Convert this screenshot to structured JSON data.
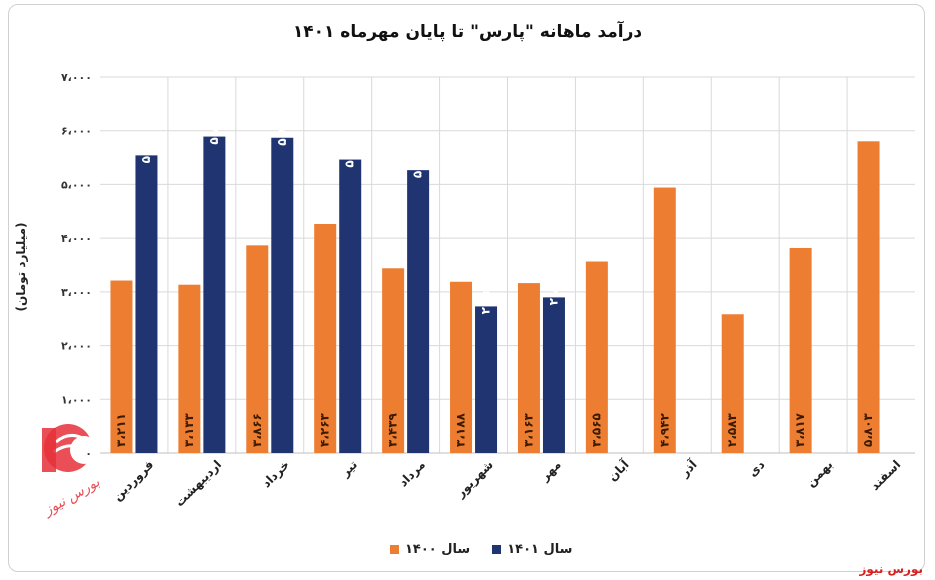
{
  "chart_data": {
    "type": "bar",
    "title": "درآمد ماهانه \"پارس\" تا پایان مهرماه ۱۴۰۱",
    "ylabel": "(میلیارد تومان)",
    "xlabel": "",
    "ylim": [
      0,
      7000
    ],
    "yticks": [
      0,
      1000,
      2000,
      3000,
      4000,
      5000,
      6000,
      7000
    ],
    "ytick_labels": [
      "۰",
      "۱،۰۰۰",
      "۲،۰۰۰",
      "۳،۰۰۰",
      "۴،۰۰۰",
      "۵،۰۰۰",
      "۶،۰۰۰",
      "۷،۰۰۰"
    ],
    "grid": true,
    "legend_position": "bottom",
    "categories": [
      "فروردین",
      "اردیبهشت",
      "خرداد",
      "تیر",
      "مرداد",
      "شهریور",
      "مهر",
      "آبان",
      "آذر",
      "دی",
      "بهمن",
      "اسفند"
    ],
    "series": [
      {
        "name": "سال ۱۴۰۰",
        "color": "#ed7d31",
        "values": [
          3211,
          3133,
          3866,
          4263,
          3439,
          3188,
          3163,
          3565,
          4942,
          2583,
          3817,
          5803
        ],
        "labels": [
          "۳،۲۱۱",
          "۳،۱۳۳",
          "۳،۸۶۶",
          "۴،۲۶۳",
          "۳،۴۳۹",
          "۳،۱۸۸",
          "۳،۱۶۳",
          "۳،۵۶۵",
          "۴،۹۴۲",
          "۲،۵۸۳",
          "۳،۸۱۷",
          "۵،۸۰۳"
        ]
      },
      {
        "name": "سال ۱۴۰۱",
        "color": "#1f3470",
        "values": [
          5541,
          5891,
          5869,
          5463,
          5266,
          2729,
          2897,
          null,
          null,
          null,
          null,
          null
        ],
        "labels": [
          "۵،۵۴۱",
          "۵،۸۹۱",
          "۵،۸۶۹",
          "۵،۴۶۳",
          "۵،۲۶۶",
          "۲،۷۲۹",
          "۲،۸۹۷",
          "",
          "",
          "",
          "",
          ""
        ]
      }
    ]
  },
  "watermark": "بورس نیوز",
  "credit": "بورس نیوز"
}
